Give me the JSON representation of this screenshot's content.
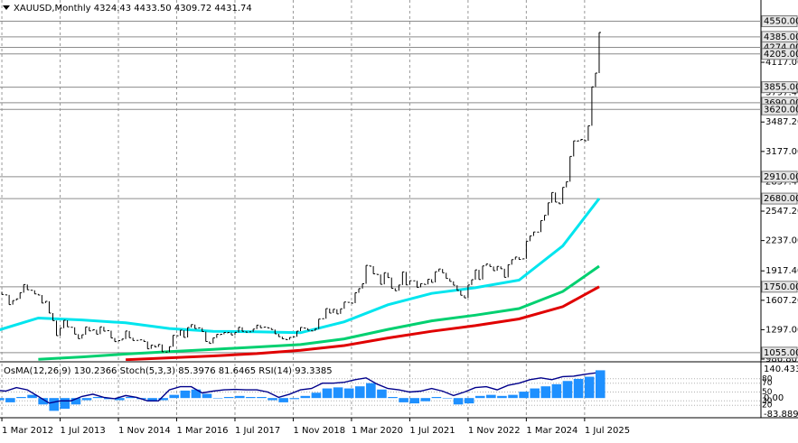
{
  "chart_data": [
    {
      "type": "bar",
      "title": "XAUUSD,Monthly  4324.43 4433.50 4309.72 4431.74",
      "color": "#000000",
      "x": [
        "1 Jan 2012",
        "1 Feb 2012",
        "1 Mar 2012",
        "1 Apr 2012",
        "1 May 2012",
        "1 Jun 2012",
        "1 Jul 2012",
        "1 Aug 2012",
        "1 Sep 2012",
        "1 Oct 2012",
        "1 Nov 2012",
        "1 Dec 2012",
        "1 Jan 2013",
        "1 Feb 2013",
        "1 Mar 2013",
        "1 Apr 2013",
        "1 May 2013",
        "1 Jun 2013",
        "1 Jul 2013",
        "1 Aug 2013",
        "1 Sep 2013",
        "1 Oct 2013",
        "1 Nov 2013",
        "1 Dec 2013",
        "1 Jan 2014",
        "1 Feb 2014",
        "1 Mar 2014",
        "1 Apr 2014",
        "1 May 2014",
        "1 Jun 2014",
        "1 Jul 2014",
        "1 Aug 2014",
        "1 Sep 2014",
        "1 Oct 2014",
        "1 Nov 2014",
        "1 Dec 2014",
        "1 Jan 2015",
        "1 Feb 2015",
        "1 Mar 2015",
        "1 Apr 2015",
        "1 May 2015",
        "1 Jun 2015",
        "1 Jul 2015",
        "1 Aug 2015",
        "1 Sep 2015",
        "1 Oct 2015",
        "1 Nov 2015",
        "1 Dec 2015",
        "1 Jan 2016",
        "1 Feb 2016",
        "1 Mar 2016",
        "1 Apr 2016",
        "1 May 2016",
        "1 Jun 2016",
        "1 Jul 2016",
        "1 Aug 2016",
        "1 Sep 2016",
        "1 Oct 2016",
        "1 Nov 2016",
        "1 Dec 2016",
        "1 Jan 2017",
        "1 Feb 2017",
        "1 Mar 2017",
        "1 Apr 2017",
        "1 May 2017",
        "1 Jun 2017",
        "1 Jul 2017",
        "1 Aug 2017",
        "1 Sep 2017",
        "1 Oct 2017",
        "1 Nov 2017",
        "1 Dec 2017",
        "1 Jan 2018",
        "1 Feb 2018",
        "1 Mar 2018",
        "1 Apr 2018",
        "1 May 2018",
        "1 Jun 2018",
        "1 Jul 2018",
        "1 Aug 2018",
        "1 Sep 2018",
        "1 Oct 2018",
        "1 Nov 2018",
        "1 Dec 2018",
        "1 Jan 2019",
        "1 Feb 2019",
        "1 Mar 2019",
        "1 Apr 2019",
        "1 May 2019",
        "1 Jun 2019",
        "1 Jul 2019",
        "1 Aug 2019",
        "1 Sep 2019",
        "1 Oct 2019",
        "1 Nov 2019",
        "1 Dec 2019",
        "1 Jan 2020",
        "1 Feb 2020",
        "1 Mar 2020",
        "1 Apr 2020",
        "1 May 2020",
        "1 Jun 2020",
        "1 Jul 2020",
        "1 Aug 2020",
        "1 Sep 2020",
        "1 Oct 2020",
        "1 Nov 2020",
        "1 Dec 2020",
        "1 Jan 2021",
        "1 Feb 2021",
        "1 Mar 2021",
        "1 Apr 2021",
        "1 May 2021",
        "1 Jun 2021",
        "1 Jul 2021",
        "1 Aug 2021",
        "1 Sep 2021",
        "1 Oct 2021",
        "1 Nov 2021",
        "1 Dec 2021",
        "1 Jan 2022",
        "1 Feb 2022",
        "1 Mar 2022",
        "1 Apr 2022",
        "1 May 2022",
        "1 Jun 2022",
        "1 Jul 2022",
        "1 Aug 2022",
        "1 Sep 2022",
        "1 Oct 2022",
        "1 Nov 2022",
        "1 Dec 2022",
        "1 Jan 2023",
        "1 Feb 2023",
        "1 Mar 2023",
        "1 Apr 2023",
        "1 May 2023",
        "1 Jun 2023",
        "1 Jul 2023",
        "1 Aug 2023",
        "1 Sep 2023",
        "1 Oct 2023",
        "1 Nov 2023",
        "1 Dec 2023",
        "1 Jan 2024",
        "1 Feb 2024",
        "1 Mar 2024",
        "1 Apr 2024",
        "1 May 2024",
        "1 Jun 2024",
        "1 Jul 2024",
        "1 Aug 2024",
        "1 Sep 2024",
        "1 Oct 2024",
        "1 Nov 2024",
        "1 Dec 2024",
        "1 Jan 2025",
        "1 Feb 2025",
        "1 Mar 2025",
        "1 Apr 2025",
        "1 May 2025",
        "1 Jun 2025",
        "1 Jul 2025",
        "1 Aug 2025",
        "1 Sep 2025",
        "1 Oct 2025",
        "1 Nov 2025"
      ],
      "values": [
        1737,
        1697,
        1669,
        1664,
        1562,
        1604,
        1622,
        1688,
        1773,
        1719,
        1713,
        1675,
        1663,
        1578,
        1596,
        1472,
        1393,
        1234,
        1313,
        1396,
        1327,
        1323,
        1250,
        1202,
        1244,
        1326,
        1284,
        1296,
        1250,
        1327,
        1282,
        1287,
        1210,
        1171,
        1182,
        1199,
        1283,
        1212,
        1183,
        1184,
        1190,
        1172,
        1095,
        1134,
        1115,
        1142,
        1064,
        1061,
        1118,
        1238,
        1233,
        1291,
        1215,
        1320,
        1351,
        1309,
        1316,
        1277,
        1173,
        1152,
        1211,
        1249,
        1249,
        1268,
        1268,
        1242,
        1269,
        1322,
        1280,
        1271,
        1275,
        1303,
        1345,
        1318,
        1325,
        1315,
        1299,
        1253,
        1224,
        1201,
        1192,
        1215,
        1222,
        1282,
        1321,
        1313,
        1292,
        1284,
        1305,
        1409,
        1413,
        1520,
        1472,
        1513,
        1464,
        1517,
        1589,
        1585,
        1577,
        1686,
        1730,
        1781,
        1975,
        1967,
        1886,
        1879,
        1776,
        1898,
        1847,
        1734,
        1708,
        1769,
        1906,
        1770,
        1814,
        1813,
        1743,
        1783,
        1774,
        1829,
        1796,
        1909,
        1937,
        1897,
        1837,
        1807,
        1766,
        1711,
        1660,
        1633,
        1768,
        1824,
        1928,
        1827,
        1969,
        1990,
        1963,
        1919,
        1965,
        1940,
        1849,
        1983,
        2036,
        2063,
        2039,
        2044,
        2230,
        2286,
        2327,
        2326,
        2448,
        2503,
        2635,
        2744,
        2643,
        2625,
        2798,
        2858,
        3124,
        3289,
        3289,
        3304,
        3290,
        3448,
        3858,
        4003,
        4431
      ],
      "lines": [
        {
          "color": "#00e5ee",
          "x": [
            "1 Jan 2012",
            "1 Jan 2013",
            "1 Jan 2014",
            "1 Jan 2015",
            "1 Jan 2016",
            "1 Jan 2017",
            "1 Jan 2018",
            "1 Jan 2019",
            "1 Jan 2020",
            "1 Jan 2021",
            "1 Jan 2022",
            "1 Jan 2023",
            "1 Jan 2024",
            "1 Jan 2025",
            "1 Nov 2025"
          ],
          "values": [
            1280,
            1420,
            1400,
            1370,
            1310,
            1280,
            1275,
            1265,
            1380,
            1560,
            1680,
            1740,
            1820,
            2180,
            2680
          ]
        },
        {
          "color": "#00d070",
          "x": [
            "1 Jan 2013",
            "1 Jan 2014",
            "1 Jan 2015",
            "1 Jan 2016",
            "1 Jan 2017",
            "1 Jan 2018",
            "1 Jan 2019",
            "1 Jan 2020",
            "1 Jan 2021",
            "1 Jan 2022",
            "1 Jan 2023",
            "1 Jan 2024",
            "1 Jan 2025",
            "1 Nov 2025"
          ],
          "values": [
            985,
            1010,
            1040,
            1065,
            1090,
            1115,
            1140,
            1200,
            1300,
            1390,
            1450,
            1520,
            1700,
            1967
          ]
        },
        {
          "color": "#e00000",
          "x": [
            "1 Jan 2015",
            "1 Jan 2016",
            "1 Jan 2017",
            "1 Jan 2018",
            "1 Jan 2019",
            "1 Jan 2020",
            "1 Jan 2021",
            "1 Jan 2022",
            "1 Jan 2023",
            "1 Jan 2024",
            "1 Jan 2025",
            "1 Nov 2025"
          ],
          "values": [
            980,
            1000,
            1020,
            1045,
            1080,
            1130,
            1210,
            1280,
            1340,
            1410,
            1540,
            1750
          ]
        }
      ],
      "ylim": [
        968,
        4774
      ],
      "yticks": [
        {
          "value": 4117,
          "label": "4117.00"
        },
        {
          "value": 3797.4,
          "label": "3797.40"
        },
        {
          "value": 3487.2,
          "label": "3487.20"
        },
        {
          "value": 3177,
          "label": "3177.00"
        },
        {
          "value": 2857.4,
          "label": "2857.40"
        },
        {
          "value": 2547.2,
          "label": "2547.20"
        },
        {
          "value": 2237,
          "label": "2237.00"
        },
        {
          "value": 1917.4,
          "label": "1917.40"
        },
        {
          "value": 1607.2,
          "label": "1607.20"
        },
        {
          "value": 1297,
          "label": "1297.00"
        },
        {
          "value": 986.8,
          "label": "986.80"
        }
      ],
      "levels": [
        {
          "value": 4550,
          "label": "4550.00"
        },
        {
          "value": 4385,
          "label": "4385.00"
        },
        {
          "value": 4274,
          "label": "4274.00"
        },
        {
          "value": 4205,
          "label": "4205.00"
        },
        {
          "value": 3855,
          "label": "3855.00"
        },
        {
          "value": 3690,
          "label": "3690.00"
        },
        {
          "value": 3620,
          "label": "3620.00"
        },
        {
          "value": 2910,
          "label": "2910.00"
        },
        {
          "value": 2680,
          "label": "2680.00"
        },
        {
          "value": 1750,
          "label": "1750.00"
        },
        {
          "value": 1055,
          "label": "1055.00"
        }
      ],
      "xticks": [
        "1 Mar 2012",
        "1 Jul 2013",
        "1 Nov 2014",
        "1 Mar 2016",
        "1 Jul 2017",
        "1 Nov 2018",
        "1 Mar 2020",
        "1 Jul 2021",
        "1 Nov 2022",
        "1 Mar 2024",
        "1 Jul 2025"
      ],
      "grid": true
    },
    {
      "type": "histogram",
      "title": "OsMA(12,26,9) 130.2366  Stoch(5,3,3) 85.3976 81.6465  RSI(14) 93.3385",
      "color": "#1e90ff",
      "x": [
        "1 Jan 2012",
        "1 Apr 2012",
        "1 Jul 2012",
        "1 Oct 2012",
        "1 Jan 2013",
        "1 Apr 2013",
        "1 Jul 2013",
        "1 Oct 2013",
        "1 Jan 2014",
        "1 Apr 2014",
        "1 Jul 2014",
        "1 Oct 2014",
        "1 Jan 2015",
        "1 Apr 2015",
        "1 Jul 2015",
        "1 Oct 2015",
        "1 Jan 2016",
        "1 Apr 2016",
        "1 Jul 2016",
        "1 Oct 2016",
        "1 Jan 2017",
        "1 Apr 2017",
        "1 Jul 2017",
        "1 Oct 2017",
        "1 Jan 2018",
        "1 Apr 2018",
        "1 Jul 2018",
        "1 Oct 2018",
        "1 Jan 2019",
        "1 Apr 2019",
        "1 Jul 2019",
        "1 Oct 2019",
        "1 Jan 2020",
        "1 Apr 2020",
        "1 Jul 2020",
        "1 Oct 2020",
        "1 Jan 2021",
        "1 Apr 2021",
        "1 Jul 2021",
        "1 Oct 2021",
        "1 Jan 2022",
        "1 Apr 2022",
        "1 Jul 2022",
        "1 Oct 2022",
        "1 Jan 2023",
        "1 Apr 2023",
        "1 Jul 2023",
        "1 Oct 2023",
        "1 Jan 2024",
        "1 Apr 2024",
        "1 Jul 2024",
        "1 Oct 2024",
        "1 Jan 2025",
        "1 Apr 2025",
        "1 Jul 2025",
        "1 Oct 2025"
      ],
      "values": [
        -10,
        -20,
        5,
        15,
        -30,
        -60,
        -50,
        -30,
        -10,
        5,
        -5,
        -10,
        5,
        -5,
        -15,
        -10,
        15,
        35,
        40,
        20,
        0,
        5,
        10,
        5,
        5,
        -10,
        -20,
        -5,
        10,
        25,
        45,
        50,
        45,
        55,
        70,
        40,
        5,
        -20,
        -25,
        -15,
        5,
        0,
        -30,
        -25,
        10,
        15,
        10,
        15,
        30,
        45,
        55,
        65,
        80,
        90,
        100,
        130.2366
      ],
      "lines": [
        {
          "color": "#00008b",
          "axis": "y2",
          "values": [
            55,
            52,
            60,
            55,
            40,
            25,
            30,
            30,
            40,
            45,
            38,
            35,
            42,
            38,
            30,
            30,
            55,
            62,
            62,
            48,
            52,
            55,
            56,
            55,
            55,
            50,
            38,
            45,
            55,
            58,
            70,
            70,
            72,
            78,
            82,
            68,
            58,
            55,
            50,
            52,
            58,
            52,
            42,
            50,
            60,
            62,
            55,
            65,
            70,
            78,
            82,
            78,
            85,
            86,
            90,
            93.3385
          ]
        }
      ],
      "ylim": [
        -83.8899,
        140.4335
      ],
      "yticks": [
        {
          "value": 140.4335,
          "label": "140.4335"
        },
        {
          "value": 0,
          "label": "0.00"
        },
        {
          "value": -83.8899,
          "label": "-83.8899"
        }
      ],
      "y2lim": [
        0,
        100
      ],
      "y2ticks": [
        80,
        70,
        50,
        30,
        20
      ]
    }
  ]
}
